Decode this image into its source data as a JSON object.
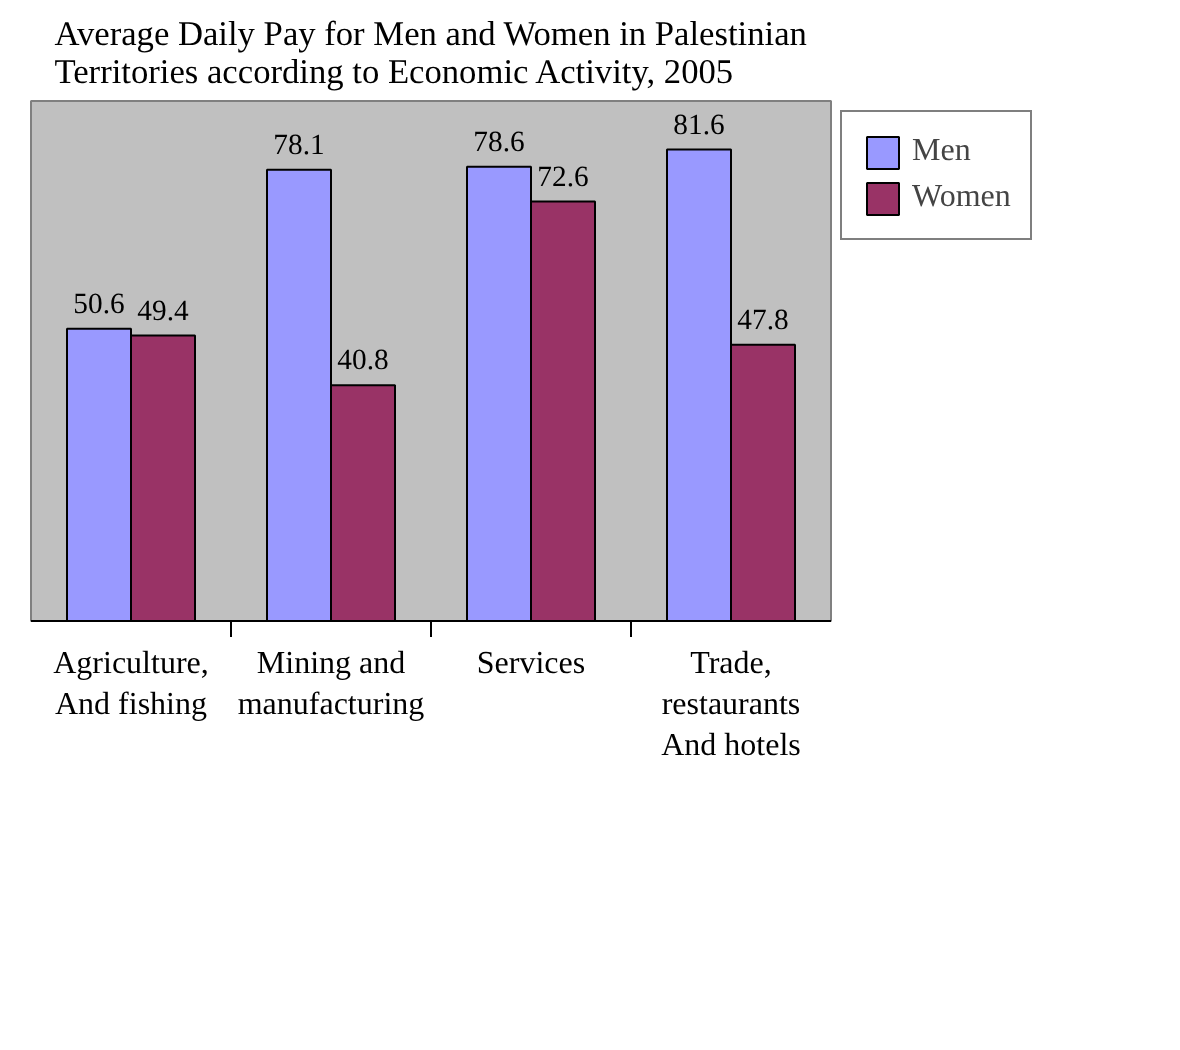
{
  "chart_data": {
    "type": "bar",
    "title": "Average Daily Pay for Men and Women in Palestinian Territories according to Economic Activity, 2005",
    "categories": [
      "Agriculture, And fishing",
      "Mining and manufacturing",
      "Services",
      "Trade, restaurants And hotels"
    ],
    "series": [
      {
        "name": "Men",
        "color": "#9999ff",
        "values": [
          50.6,
          78.1,
          78.6,
          81.6
        ]
      },
      {
        "name": "Women",
        "color": "#993366",
        "values": [
          49.4,
          40.8,
          72.6,
          47.8
        ]
      }
    ],
    "ylim": [
      0,
      90
    ],
    "data_labels": true,
    "legend": "right",
    "grid": false,
    "tick_labels": "x"
  }
}
